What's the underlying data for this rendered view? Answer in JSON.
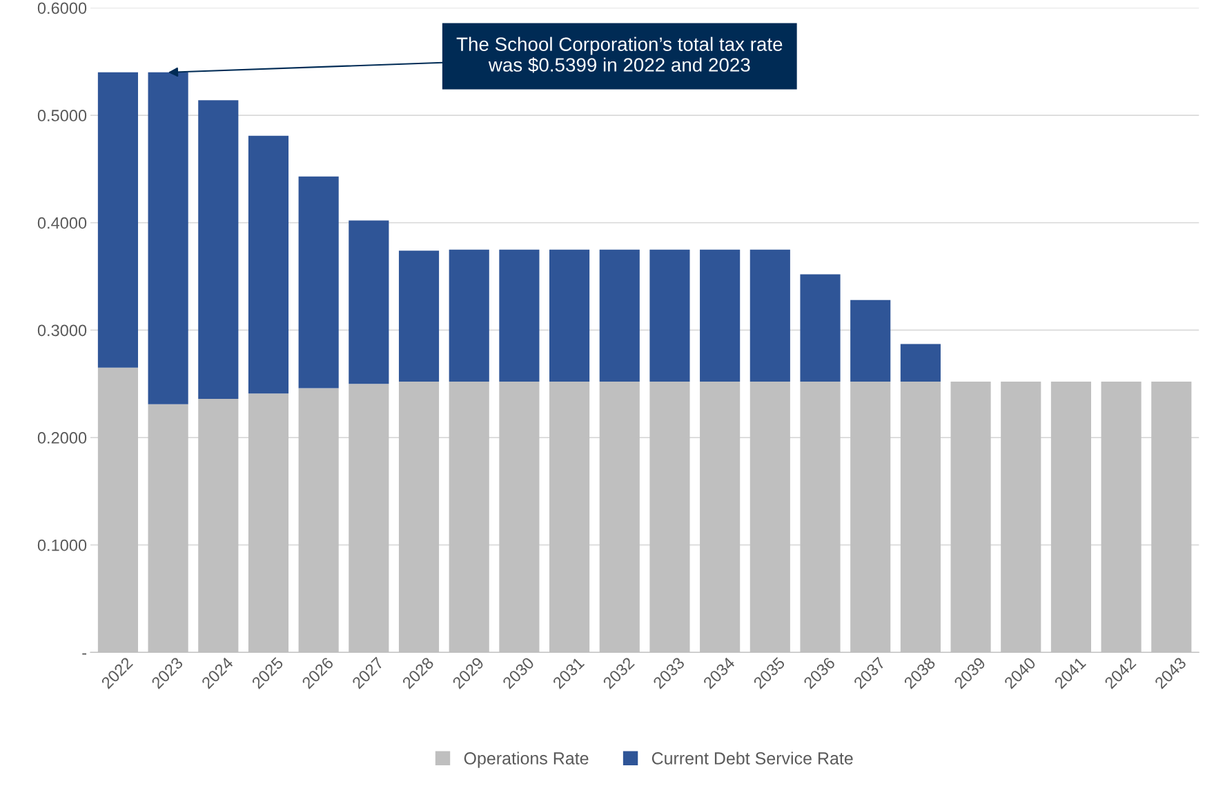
{
  "chart_data": {
    "type": "bar",
    "stacked": true,
    "categories": [
      "2022",
      "2023",
      "2024",
      "2025",
      "2026",
      "2027",
      "2028",
      "2029",
      "2030",
      "2031",
      "2032",
      "2033",
      "2034",
      "2035",
      "2036",
      "2037",
      "2038",
      "2039",
      "2040",
      "2041",
      "2042",
      "2043"
    ],
    "series": [
      {
        "name": "Operations Rate",
        "color": "#bfbfbf",
        "values": [
          0.265,
          0.231,
          0.236,
          0.241,
          0.246,
          0.25,
          0.252,
          0.252,
          0.252,
          0.252,
          0.252,
          0.252,
          0.252,
          0.252,
          0.252,
          0.252,
          0.252,
          0.252,
          0.252,
          0.252,
          0.252,
          0.252
        ]
      },
      {
        "name": "Current Debt Service Rate",
        "color": "#2f5597",
        "values": [
          0.275,
          0.309,
          0.278,
          0.24,
          0.197,
          0.152,
          0.122,
          0.123,
          0.123,
          0.123,
          0.123,
          0.123,
          0.123,
          0.123,
          0.1,
          0.076,
          0.035,
          null,
          null,
          null,
          null,
          null
        ]
      }
    ],
    "ylim": [
      0,
      0.6
    ],
    "yticks": [
      {
        "value": 0,
        "label": "-"
      },
      {
        "value": 0.1,
        "label": "0.1000"
      },
      {
        "value": 0.2,
        "label": "0.2000"
      },
      {
        "value": 0.3,
        "label": "0.3000"
      },
      {
        "value": 0.4,
        "label": "0.4000"
      },
      {
        "value": 0.5,
        "label": "0.5000"
      },
      {
        "value": 0.6,
        "label": "0.6000"
      }
    ],
    "grid": "y",
    "legend": "bottom",
    "annotations": [
      {
        "text": "The School Corporation’s total tax rate\nwas $0.5399 in 2022 and 2023",
        "x": "2023",
        "y": 0.5399
      }
    ]
  }
}
